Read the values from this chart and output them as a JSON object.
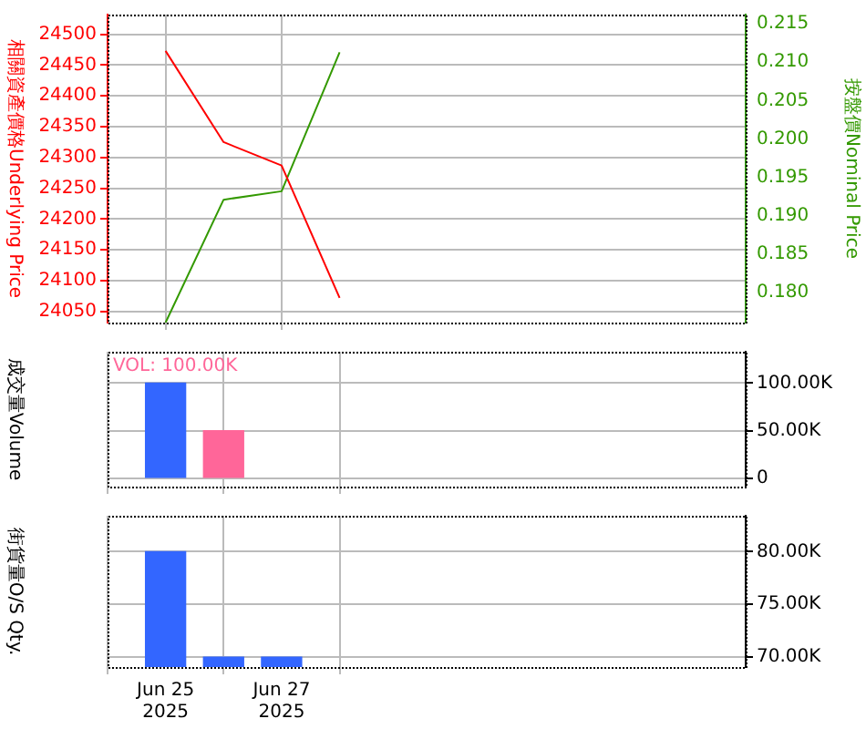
{
  "chart_data": [
    {
      "type": "line",
      "ylabel": "相關資產價格Underlying Price",
      "y2label": "按盤價Nominal Price",
      "x": [
        "2025-06-25",
        "2025-06-26",
        "2025-06-27",
        "2025-06-28"
      ],
      "xlim": [
        "2025-06-24",
        "2025-07-05"
      ],
      "xticks": [
        "2025-06-25",
        "2025-06-27"
      ],
      "ylim": [
        24032,
        24532
      ],
      "yticks": [
        24050,
        24100,
        24150,
        24200,
        24250,
        24300,
        24350,
        24400,
        24450,
        24500
      ],
      "y2lim": [
        0.1761,
        0.2162
      ],
      "y2ticks": [
        {
          "value": 0.18,
          "label": "0.180"
        },
        0.185,
        {
          "value": 0.19,
          "label": "0.190"
        },
        0.195,
        {
          "value": 0.2,
          "label": "0.200"
        },
        0.205,
        {
          "value": 0.21,
          "label": "0.210"
        },
        0.215
      ],
      "grid": true,
      "marker": "none",
      "tick_labels": "y",
      "series": [
        {
          "color": "#ff0000",
          "values": [
            24473,
            24325,
            24287,
            24072
          ]
        },
        {
          "color": "#339900",
          "axis": "y2",
          "values": [
            0.1761,
            0.1921,
            0.1932,
            0.2113
          ]
        }
      ]
    },
    {
      "type": "bar",
      "ylabel": "成交量Volume",
      "annotations": [
        "VOL: 100.00K"
      ],
      "x": [
        "2025-06-25",
        "2025-06-26"
      ],
      "xlim": [
        "2025-06-24",
        "2025-07-05"
      ],
      "xticks": [
        "2025-06-25",
        "2025-06-27"
      ],
      "ylim": [
        -8700,
        133000
      ],
      "yticks": [
        0,
        {
          "value": 50000,
          "label": "50.00K"
        },
        {
          "value": 100000,
          "label": "100.00K"
        }
      ],
      "grid": true,
      "tick_labels": "y",
      "values": [
        100000,
        50000
      ],
      "colors": [
        "#3366ff",
        "#ff6699"
      ]
    },
    {
      "type": "bar",
      "ylabel": "街貨量O/S Qty.",
      "x": [
        "2025-06-25",
        "2025-06-26",
        "2025-06-27"
      ],
      "xlim": [
        "2025-06-24",
        "2025-07-05"
      ],
      "xticks": [
        {
          "value": "2025-06-25",
          "label": "Jun 25 2025"
        },
        {
          "value": "2025-06-27",
          "label": "Jun 27 2025"
        }
      ],
      "ylim": [
        69070,
        83400
      ],
      "yticks": [
        {
          "value": 70000,
          "label": "70.00K"
        },
        {
          "value": 75000,
          "label": "75.00K"
        },
        {
          "value": 80000,
          "label": "80.00K"
        }
      ],
      "grid": true,
      "values": [
        80000,
        70000,
        70000
      ],
      "color": "#3366ff"
    }
  ]
}
